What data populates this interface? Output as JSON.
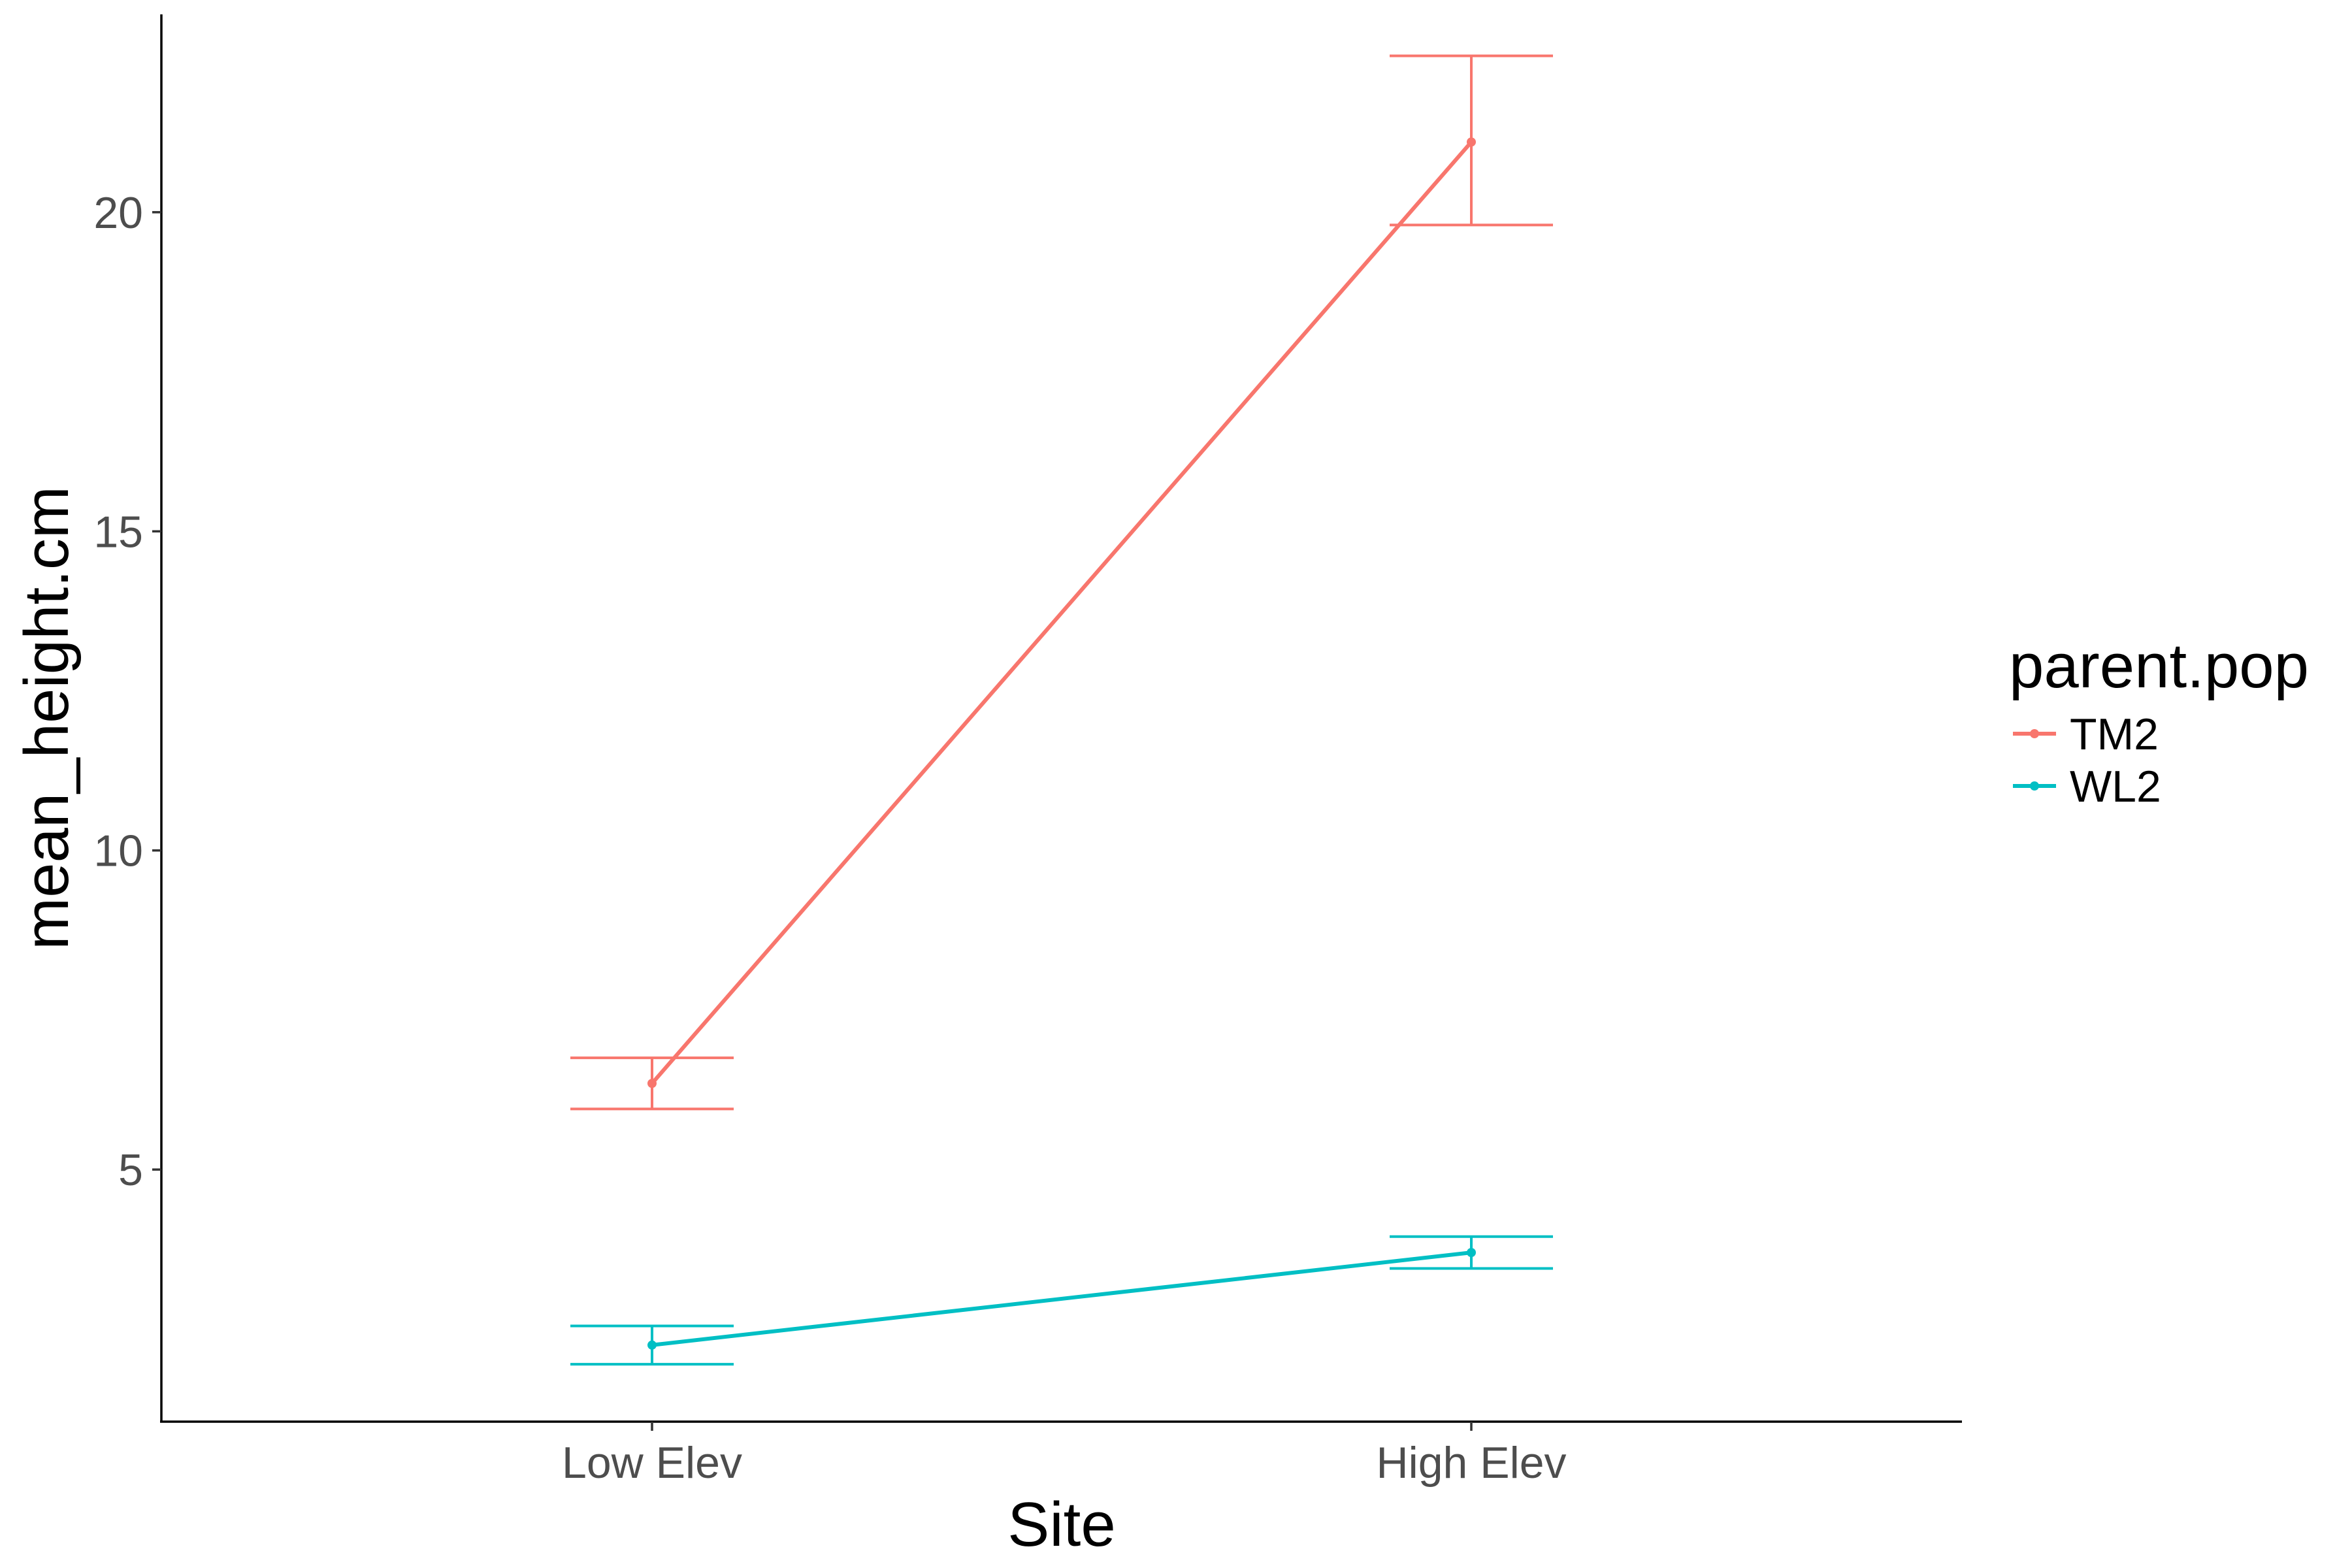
{
  "chart_data": {
    "type": "line",
    "title": "",
    "xlabel": "Site",
    "ylabel": "mean_height.cm",
    "categories": [
      "Low Elev",
      "High Elev"
    ],
    "y_ticks": [
      5,
      10,
      15,
      20
    ],
    "ylim": [
      1.05,
      23.1
    ],
    "grid": false,
    "legend": {
      "title": "parent.pop",
      "placement": "right"
    },
    "series": [
      {
        "name": "TM2",
        "color": "#F8766D",
        "values": [
          6.35,
          21.1
        ],
        "error_low": [
          5.95,
          19.8
        ],
        "error_high": [
          6.75,
          22.45
        ]
      },
      {
        "name": "WL2",
        "color": "#00BFC4",
        "values": [
          2.25,
          3.7
        ],
        "error_low": [
          1.95,
          3.45
        ],
        "error_high": [
          2.55,
          3.95
        ]
      }
    ]
  }
}
